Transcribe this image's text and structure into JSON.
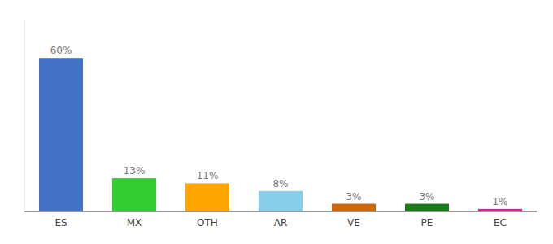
{
  "chart_data": {
    "type": "bar",
    "categories": [
      "ES",
      "MX",
      "OTH",
      "AR",
      "VE",
      "PE",
      "EC"
    ],
    "values": [
      60,
      13,
      11,
      8,
      3,
      3,
      1
    ],
    "value_labels": [
      "60%",
      "13%",
      "11%",
      "8%",
      "3%",
      "3%",
      "1%"
    ],
    "colors": [
      "#4472C4",
      "#33CC33",
      "#FFA500",
      "#87CEEB",
      "#CC6600",
      "#1A7A1A",
      "#FF1493"
    ],
    "ylim": [
      0,
      75
    ],
    "data_labels": true,
    "tick_labels": "x",
    "grid": false
  }
}
